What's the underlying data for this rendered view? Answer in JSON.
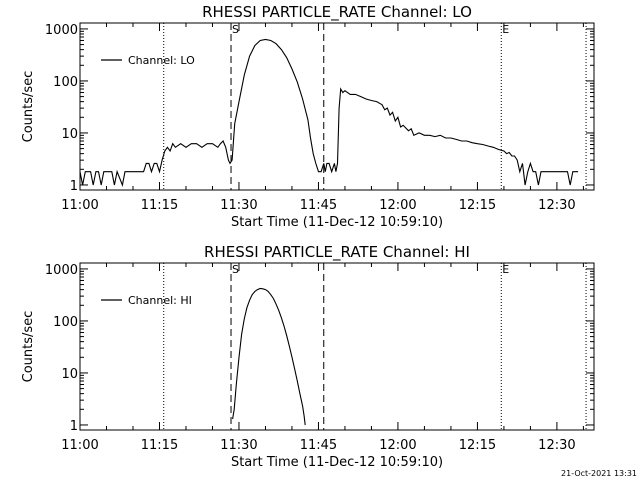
{
  "footer": {
    "timestamp": "21-Oct-2021 13:31"
  },
  "chart_data": [
    {
      "type": "line",
      "title": "RHESSI PARTICLE_RATE Channel: LO",
      "xlabel": "Start Time (11-Dec-12 10:59:10)",
      "ylabel": "Counts/sec",
      "x_unit": "minutes after 11:00",
      "xlim": [
        0,
        97
      ],
      "ylim": [
        0.8,
        1300
      ],
      "y_scale": "log",
      "x_ticks": [
        {
          "value": 0,
          "label": "11:00"
        },
        {
          "value": 15,
          "label": "11:15"
        },
        {
          "value": 30,
          "label": "11:30"
        },
        {
          "value": 45,
          "label": "11:45"
        },
        {
          "value": 60,
          "label": "12:00"
        },
        {
          "value": 75,
          "label": "12:15"
        },
        {
          "value": 90,
          "label": "12:30"
        }
      ],
      "y_ticks": [
        {
          "value": 1,
          "label": "1"
        },
        {
          "value": 10,
          "label": "10"
        },
        {
          "value": 100,
          "label": "100"
        },
        {
          "value": 1000,
          "label": "1000"
        }
      ],
      "legend": {
        "label": "Channel: LO",
        "position": "top-left"
      },
      "markers": [
        {
          "x": 28.5,
          "style": "dashed",
          "label": "S"
        },
        {
          "x": 46.0,
          "style": "dashed",
          "label": ""
        },
        {
          "x": 79.5,
          "style": "dotted",
          "label": "E"
        },
        {
          "x": 15.8,
          "style": "dotted",
          "label": ""
        },
        {
          "x": 95.5,
          "style": "dotted",
          "label": ""
        }
      ],
      "series": [
        {
          "name": "Channel: LO",
          "points": [
            [
              0,
              1.8
            ],
            [
              0.5,
              1.0
            ],
            [
              1,
              1.8
            ],
            [
              2,
              1.8
            ],
            [
              2.5,
              1.0
            ],
            [
              3,
              1.8
            ],
            [
              3.5,
              1.8
            ],
            [
              4,
              1.0
            ],
            [
              4.5,
              1.8
            ],
            [
              6,
              1.8
            ],
            [
              6.5,
              1.0
            ],
            [
              7,
              1.8
            ],
            [
              8,
              1.0
            ],
            [
              8.5,
              1.8
            ],
            [
              10,
              1.8
            ],
            [
              12,
              1.8
            ],
            [
              12.5,
              2.6
            ],
            [
              13,
              2.6
            ],
            [
              13.5,
              1.8
            ],
            [
              14,
              2.6
            ],
            [
              14.5,
              2.6
            ],
            [
              15,
              1.8
            ],
            [
              15.5,
              3.0
            ],
            [
              16,
              4.5
            ],
            [
              16.5,
              5.3
            ],
            [
              17,
              4.5
            ],
            [
              17.5,
              6.2
            ],
            [
              18,
              5.3
            ],
            [
              19,
              6.2
            ],
            [
              20,
              5.3
            ],
            [
              21,
              6.2
            ],
            [
              22,
              6.2
            ],
            [
              23,
              5.3
            ],
            [
              24,
              6.2
            ],
            [
              25,
              6.2
            ],
            [
              26,
              5.3
            ],
            [
              26.5,
              6.2
            ],
            [
              27,
              7.0
            ],
            [
              27.5,
              5.3
            ],
            [
              28,
              3.0
            ],
            [
              28.3,
              2.6
            ],
            [
              28.7,
              3.0
            ],
            [
              29.2,
              15
            ],
            [
              30,
              40
            ],
            [
              31,
              130
            ],
            [
              32,
              300
            ],
            [
              33,
              480
            ],
            [
              34,
              600
            ],
            [
              35,
              630
            ],
            [
              36,
              600
            ],
            [
              37,
              520
            ],
            [
              38,
              400
            ],
            [
              39,
              280
            ],
            [
              40,
              170
            ],
            [
              41,
              95
            ],
            [
              42,
              45
            ],
            [
              43,
              18
            ],
            [
              43.5,
              8
            ],
            [
              44,
              4
            ],
            [
              44.5,
              2.6
            ],
            [
              45,
              1.8
            ],
            [
              45.5,
              1.8
            ],
            [
              46,
              2.6
            ],
            [
              46.3,
              1.8
            ],
            [
              46.6,
              2.6
            ],
            [
              47,
              2.6
            ],
            [
              47.5,
              1.8
            ],
            [
              48,
              2.6
            ],
            [
              48.3,
              1.8
            ],
            [
              48.6,
              2.6
            ],
            [
              48.9,
              30
            ],
            [
              49.2,
              70
            ],
            [
              49.6,
              60
            ],
            [
              50,
              65
            ],
            [
              51,
              55
            ],
            [
              52,
              55
            ],
            [
              53,
              50
            ],
            [
              54,
              45
            ],
            [
              55,
              42
            ],
            [
              56,
              40
            ],
            [
              57,
              35
            ],
            [
              57.5,
              28
            ],
            [
              58,
              30
            ],
            [
              58.5,
              22
            ],
            [
              59,
              25
            ],
            [
              59.5,
              17
            ],
            [
              60,
              20
            ],
            [
              60.5,
              13
            ],
            [
              61,
              14
            ],
            [
              62,
              11
            ],
            [
              62.5,
              12
            ],
            [
              63,
              9
            ],
            [
              64,
              10
            ],
            [
              65,
              9
            ],
            [
              66,
              9
            ],
            [
              67,
              8.5
            ],
            [
              68,
              9
            ],
            [
              69,
              8
            ],
            [
              70,
              8
            ],
            [
              71,
              7.5
            ],
            [
              72,
              7
            ],
            [
              73,
              7
            ],
            [
              74,
              6.5
            ],
            [
              75,
              6.2
            ],
            [
              76,
              6
            ],
            [
              77,
              5.6
            ],
            [
              78,
              5.3
            ],
            [
              79,
              4.8
            ],
            [
              80,
              4.5
            ],
            [
              80.5,
              4.0
            ],
            [
              81,
              4.2
            ],
            [
              81.5,
              3.6
            ],
            [
              82,
              3.6
            ],
            [
              82.5,
              3.0
            ],
            [
              83,
              1.8
            ],
            [
              83.5,
              2.6
            ],
            [
              84,
              1.0
            ],
            [
              84.5,
              1.8
            ],
            [
              85,
              2.6
            ],
            [
              85.5,
              1.8
            ],
            [
              86,
              1.8
            ],
            [
              86.5,
              1.0
            ],
            [
              87,
              1.8
            ],
            [
              88,
              1.8
            ],
            [
              89,
              1.8
            ],
            [
              90,
              1.8
            ],
            [
              91,
              1.8
            ],
            [
              92,
              1.8
            ],
            [
              92.5,
              1.0
            ],
            [
              93,
              1.8
            ],
            [
              94,
              1.8
            ]
          ]
        }
      ]
    },
    {
      "type": "line",
      "title": "RHESSI PARTICLE_RATE Channel: HI",
      "xlabel": "Start Time (11-Dec-12 10:59:10)",
      "ylabel": "Counts/sec",
      "x_unit": "minutes after 11:00",
      "xlim": [
        0,
        97
      ],
      "ylim": [
        0.8,
        1300
      ],
      "y_scale": "log",
      "x_ticks": [
        {
          "value": 0,
          "label": "11:00"
        },
        {
          "value": 15,
          "label": "11:15"
        },
        {
          "value": 30,
          "label": "11:30"
        },
        {
          "value": 45,
          "label": "11:45"
        },
        {
          "value": 60,
          "label": "12:00"
        },
        {
          "value": 75,
          "label": "12:15"
        },
        {
          "value": 90,
          "label": "12:30"
        }
      ],
      "y_ticks": [
        {
          "value": 1,
          "label": "1"
        },
        {
          "value": 10,
          "label": "10"
        },
        {
          "value": 100,
          "label": "100"
        },
        {
          "value": 1000,
          "label": "1000"
        }
      ],
      "legend": {
        "label": "Channel: HI",
        "position": "top-left"
      },
      "markers": [
        {
          "x": 28.5,
          "style": "dashed",
          "label": "S"
        },
        {
          "x": 46.0,
          "style": "dashed",
          "label": ""
        },
        {
          "x": 79.5,
          "style": "dotted",
          "label": "E"
        },
        {
          "x": 15.8,
          "style": "dotted",
          "label": ""
        },
        {
          "x": 95.5,
          "style": "dotted",
          "label": ""
        }
      ],
      "series": [
        {
          "name": "Channel: HI",
          "points": [
            [
              28.8,
              1.3
            ],
            [
              29.1,
              2.0
            ],
            [
              29.5,
              6
            ],
            [
              30,
              20
            ],
            [
              30.5,
              55
            ],
            [
              31,
              110
            ],
            [
              31.5,
              180
            ],
            [
              32,
              250
            ],
            [
              32.5,
              320
            ],
            [
              33,
              370
            ],
            [
              33.5,
              400
            ],
            [
              34,
              420
            ],
            [
              34.5,
              415
            ],
            [
              35,
              400
            ],
            [
              35.5,
              370
            ],
            [
              36,
              320
            ],
            [
              36.5,
              270
            ],
            [
              37,
              210
            ],
            [
              37.5,
              160
            ],
            [
              38,
              115
            ],
            [
              38.5,
              80
            ],
            [
              39,
              52
            ],
            [
              39.5,
              33
            ],
            [
              40,
              20
            ],
            [
              40.5,
              12
            ],
            [
              41,
              7
            ],
            [
              41.5,
              4
            ],
            [
              42,
              2.3
            ],
            [
              42.3,
              1.5
            ],
            [
              42.5,
              1.0
            ]
          ]
        }
      ]
    }
  ]
}
